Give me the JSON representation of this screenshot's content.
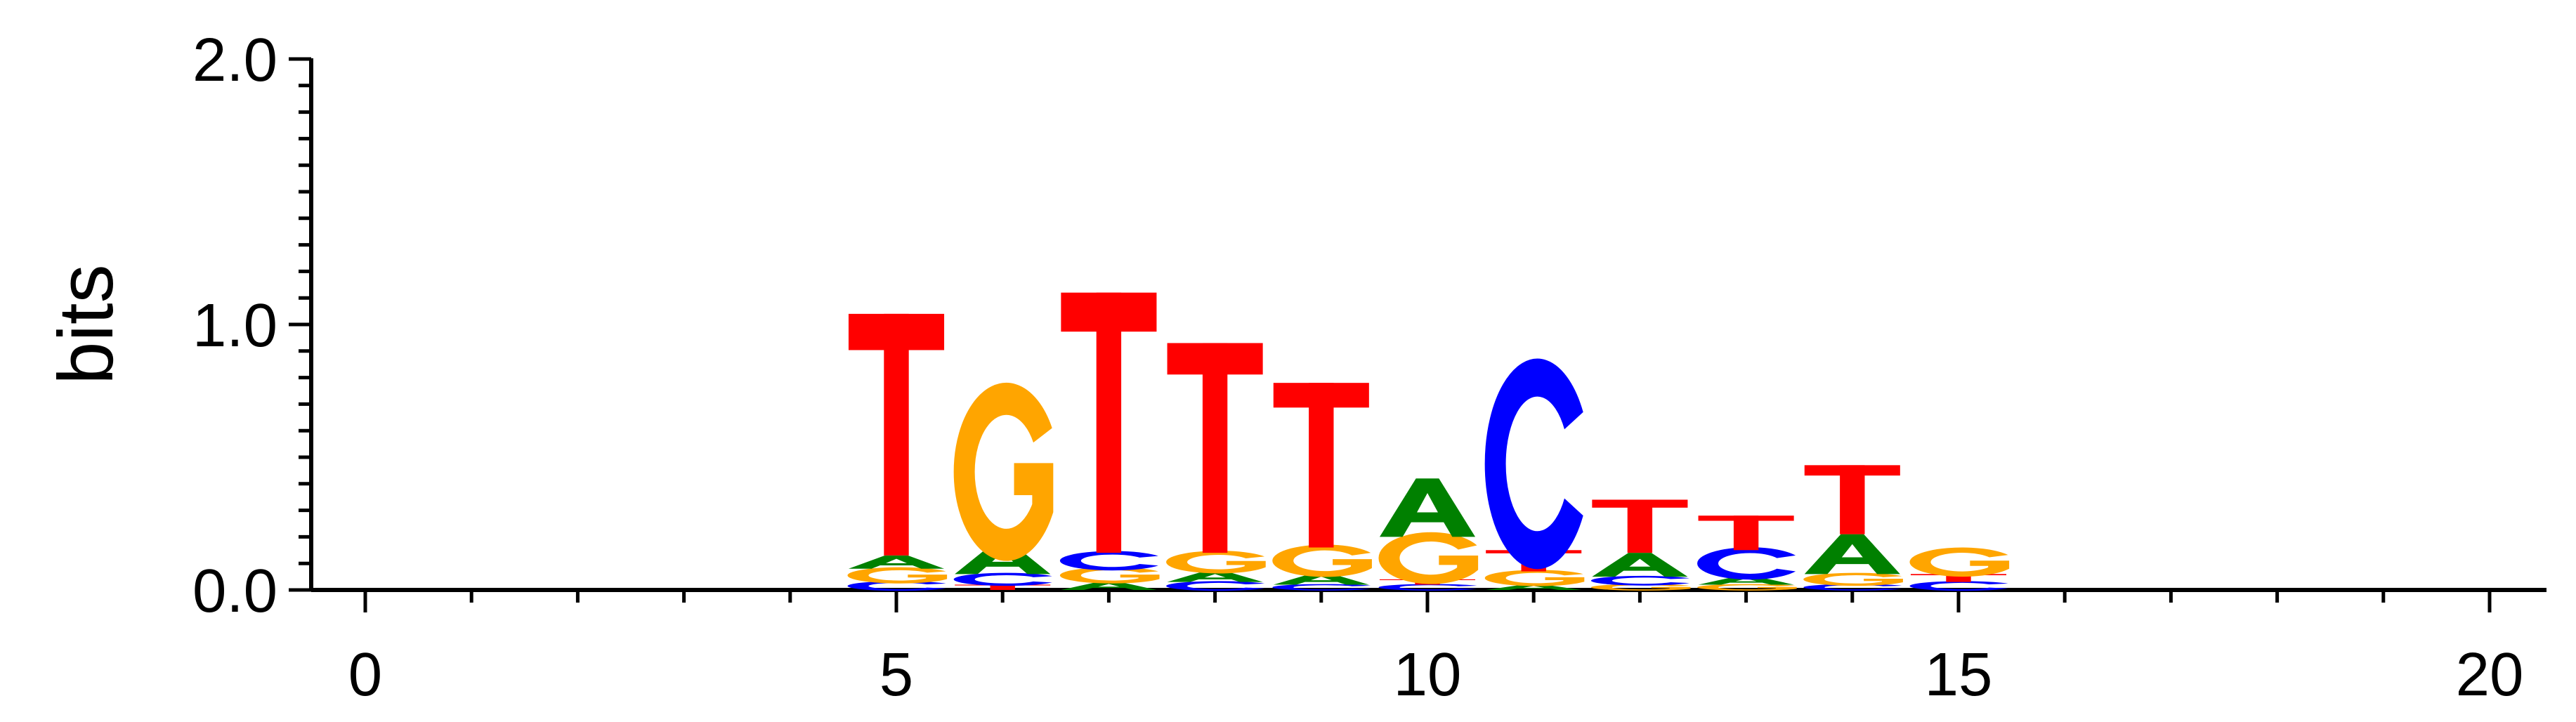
{
  "chart_data": {
    "type": "sequence-logo",
    "ylabel": "bits",
    "xlabel": "",
    "title": "",
    "xlim": [
      0,
      20
    ],
    "ylim": [
      0,
      2.0
    ],
    "x_ticks": [
      "0",
      "5",
      "10",
      "15",
      "20"
    ],
    "y_ticks": [
      "0.0",
      "1.0",
      "2.0"
    ],
    "grid": false,
    "legend": "none",
    "colors": {
      "A": "#008000",
      "C": "#0000ff",
      "G": "#ffa500",
      "T": "#ff0000"
    },
    "positions": [
      {
        "x": 5,
        "letters": [
          {
            "base": "C",
            "height": 0.03
          },
          {
            "base": "G",
            "height": 0.05
          },
          {
            "base": "A",
            "height": 0.05
          },
          {
            "base": "T",
            "height": 0.91
          }
        ]
      },
      {
        "x": 6,
        "letters": [
          {
            "base": "T",
            "height": 0.02
          },
          {
            "base": "C",
            "height": 0.04
          },
          {
            "base": "A",
            "height": 0.11
          },
          {
            "base": "G",
            "height": 0.55
          }
        ]
      },
      {
        "x": 7,
        "letters": [
          {
            "base": "A",
            "height": 0.03
          },
          {
            "base": "G",
            "height": 0.05
          },
          {
            "base": "C",
            "height": 0.06
          },
          {
            "base": "T",
            "height": 0.98
          }
        ]
      },
      {
        "x": 8,
        "letters": [
          {
            "base": "C",
            "height": 0.03
          },
          {
            "base": "A",
            "height": 0.04
          },
          {
            "base": "G",
            "height": 0.07
          },
          {
            "base": "T",
            "height": 0.79
          }
        ]
      },
      {
        "x": 9,
        "letters": [
          {
            "base": "C",
            "height": 0.02
          },
          {
            "base": "A",
            "height": 0.04
          },
          {
            "base": "G",
            "height": 0.1
          },
          {
            "base": "T",
            "height": 0.62
          }
        ]
      },
      {
        "x": 10,
        "letters": [
          {
            "base": "C",
            "height": 0.02
          },
          {
            "base": "T",
            "height": 0.02
          },
          {
            "base": "G",
            "height": 0.16
          },
          {
            "base": "A",
            "height": 0.22
          }
        ]
      },
      {
        "x": 11,
        "letters": [
          {
            "base": "A",
            "height": 0.02
          },
          {
            "base": "G",
            "height": 0.05
          },
          {
            "base": "T",
            "height": 0.08
          },
          {
            "base": "C",
            "height": 0.65
          }
        ]
      },
      {
        "x": 12,
        "letters": [
          {
            "base": "G",
            "height": 0.02
          },
          {
            "base": "C",
            "height": 0.03
          },
          {
            "base": "A",
            "height": 0.09
          },
          {
            "base": "T",
            "height": 0.2
          }
        ]
      },
      {
        "x": 13,
        "letters": [
          {
            "base": "G",
            "height": 0.02
          },
          {
            "base": "A",
            "height": 0.03
          },
          {
            "base": "C",
            "height": 0.1
          },
          {
            "base": "T",
            "height": 0.13
          }
        ]
      },
      {
        "x": 14,
        "letters": [
          {
            "base": "C",
            "height": 0.02
          },
          {
            "base": "G",
            "height": 0.04
          },
          {
            "base": "A",
            "height": 0.15
          },
          {
            "base": "T",
            "height": 0.26
          }
        ]
      },
      {
        "x": 15,
        "letters": [
          {
            "base": "C",
            "height": 0.03
          },
          {
            "base": "T",
            "height": 0.03
          },
          {
            "base": "G",
            "height": 0.09
          }
        ]
      }
    ]
  }
}
